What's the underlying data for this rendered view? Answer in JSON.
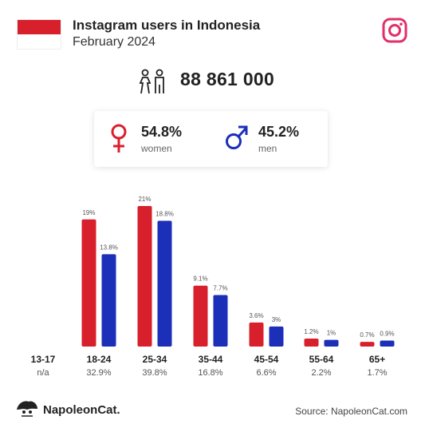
{
  "header": {
    "title": "Instagram users in Indonesia",
    "subtitle": "February 2024",
    "total": "88 861 000"
  },
  "gender": {
    "women": {
      "value": "54.8%",
      "label": "women"
    },
    "men": {
      "value": "45.2%",
      "label": "men"
    }
  },
  "colors": {
    "women": "#d8202c",
    "men": "#1b2fb8",
    "instagram": "#e0306a"
  },
  "chart_data": {
    "type": "bar",
    "categories": [
      "13-17",
      "18-24",
      "25-34",
      "35-44",
      "45-54",
      "55-64",
      "65+"
    ],
    "category_totals": [
      "n/a",
      "32.9%",
      "39.8%",
      "16.8%",
      "6.6%",
      "2.2%",
      "1.7%"
    ],
    "series": [
      {
        "values": [
          null,
          19,
          21,
          9.1,
          3.6,
          1.2,
          0.7
        ],
        "labels": [
          "",
          "19%",
          "21%",
          "9.1%",
          "3.6%",
          "1.2%",
          "0.7%"
        ]
      },
      {
        "values": [
          null,
          13.8,
          18.8,
          7.7,
          3,
          1,
          0.9
        ],
        "labels": [
          "",
          "13.8%",
          "18.8%",
          "7.7%",
          "3%",
          "1%",
          "0.9%"
        ]
      }
    ],
    "ylim": [
      0,
      21
    ]
  },
  "footer": {
    "brand": "NapoleonCat.",
    "source": "Source: NapoleonCat.com"
  }
}
